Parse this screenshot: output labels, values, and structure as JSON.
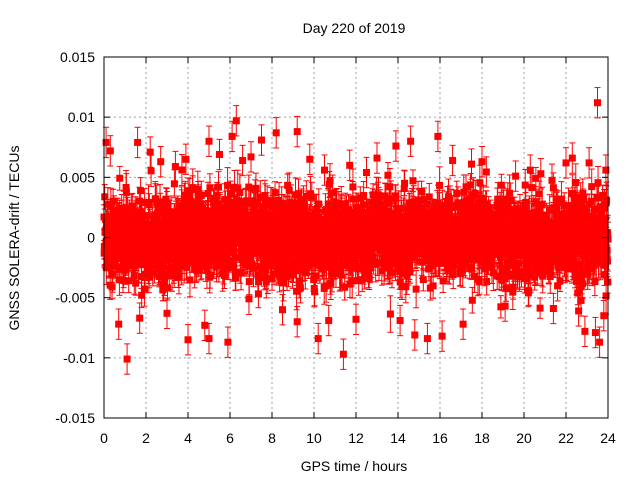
{
  "chart_data": {
    "type": "scatter",
    "title": "Day 220 of 2019",
    "xlabel": "GPS time / hours",
    "ylabel": "GNSS SOLERA-drift / TECUs",
    "xlim": [
      0,
      24
    ],
    "ylim": [
      -0.015,
      0.015
    ],
    "grid": true,
    "x_ticks": [
      0,
      2,
      4,
      6,
      8,
      10,
      12,
      14,
      16,
      18,
      20,
      22,
      24
    ],
    "y_ticks": [
      -0.015,
      -0.01,
      -0.005,
      0,
      0.005,
      0.01,
      0.015
    ],
    "x_tick_labels": [
      "0",
      "2",
      "4",
      "6",
      "8",
      "10",
      "12",
      "14",
      "16",
      "18",
      "20",
      "22",
      "24"
    ],
    "y_tick_labels": [
      "-0.015",
      "-0.01",
      "-0.005",
      "0",
      "0.005",
      "0.01",
      "0.015"
    ],
    "series": [
      {
        "name": "SOLERA-drift",
        "color": "#ff0000",
        "marker": "square",
        "error_bars": true,
        "note": "dense series of ~2880 points (30 s sampling) scattered roughly between -0.006 and +0.007 TECU around zero, typical error bar about ±0.0012 TECU",
        "dense_band": {
          "x_range": [
            0,
            24
          ],
          "center": 0.0,
          "spread": 0.0028,
          "typical_error": 0.0012,
          "count": 2880
        },
        "outliers": [
          {
            "x": 0.1,
            "y": 0.0079
          },
          {
            "x": 0.3,
            "y": 0.0072
          },
          {
            "x": 0.7,
            "y": -0.0072
          },
          {
            "x": 1.1,
            "y": -0.0101
          },
          {
            "x": 1.6,
            "y": 0.0079
          },
          {
            "x": 1.7,
            "y": -0.0067
          },
          {
            "x": 2.2,
            "y": 0.0071
          },
          {
            "x": 2.7,
            "y": 0.0063
          },
          {
            "x": 3.0,
            "y": -0.0063
          },
          {
            "x": 3.4,
            "y": 0.0059
          },
          {
            "x": 3.9,
            "y": 0.0065
          },
          {
            "x": 4.0,
            "y": -0.0085
          },
          {
            "x": 4.8,
            "y": -0.0073
          },
          {
            "x": 5.0,
            "y": 0.008
          },
          {
            "x": 5.0,
            "y": -0.0084
          },
          {
            "x": 5.5,
            "y": 0.0069
          },
          {
            "x": 5.9,
            "y": -0.0087
          },
          {
            "x": 6.1,
            "y": 0.0084
          },
          {
            "x": 6.3,
            "y": 0.0097
          },
          {
            "x": 6.6,
            "y": 0.0064
          },
          {
            "x": 7.0,
            "y": 0.0067
          },
          {
            "x": 7.5,
            "y": 0.0081
          },
          {
            "x": 8.2,
            "y": 0.0087
          },
          {
            "x": 8.5,
            "y": -0.006
          },
          {
            "x": 9.2,
            "y": 0.0088
          },
          {
            "x": 9.2,
            "y": -0.007
          },
          {
            "x": 9.8,
            "y": 0.0065
          },
          {
            "x": 10.2,
            "y": -0.0084
          },
          {
            "x": 10.5,
            "y": 0.0056
          },
          {
            "x": 10.7,
            "y": -0.0069
          },
          {
            "x": 11.4,
            "y": -0.0097
          },
          {
            "x": 11.7,
            "y": 0.006
          },
          {
            "x": 12.0,
            "y": -0.0068
          },
          {
            "x": 12.5,
            "y": 0.0054
          },
          {
            "x": 13.0,
            "y": 0.0066
          },
          {
            "x": 13.9,
            "y": 0.0076
          },
          {
            "x": 14.1,
            "y": -0.0069
          },
          {
            "x": 14.6,
            "y": 0.008
          },
          {
            "x": 14.8,
            "y": -0.0081
          },
          {
            "x": 15.4,
            "y": -0.0084
          },
          {
            "x": 15.9,
            "y": 0.0084
          },
          {
            "x": 16.1,
            "y": -0.0082
          },
          {
            "x": 16.6,
            "y": 0.0064
          },
          {
            "x": 17.1,
            "y": -0.0072
          },
          {
            "x": 17.5,
            "y": 0.0061
          },
          {
            "x": 18.0,
            "y": 0.0063
          },
          {
            "x": 19.1,
            "y": -0.0057
          },
          {
            "x": 19.6,
            "y": 0.0051
          },
          {
            "x": 20.3,
            "y": 0.0056
          },
          {
            "x": 20.8,
            "y": 0.0053
          },
          {
            "x": 21.4,
            "y": -0.0059
          },
          {
            "x": 22.0,
            "y": 0.0062
          },
          {
            "x": 22.3,
            "y": 0.0066
          },
          {
            "x": 22.6,
            "y": -0.0061
          },
          {
            "x": 22.9,
            "y": -0.0078
          },
          {
            "x": 23.1,
            "y": 0.0062
          },
          {
            "x": 23.4,
            "y": -0.0079
          },
          {
            "x": 23.5,
            "y": 0.0112
          },
          {
            "x": 23.6,
            "y": -0.0087
          },
          {
            "x": 23.8,
            "y": -0.0065
          },
          {
            "x": 23.9,
            "y": 0.0056
          }
        ]
      }
    ]
  }
}
